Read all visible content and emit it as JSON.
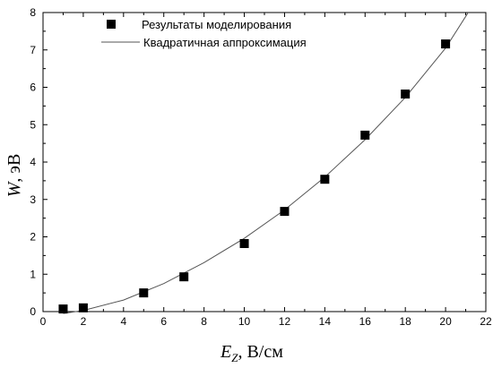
{
  "chart_data": {
    "type": "scatter",
    "xlabel": {
      "symbol": "E",
      "subscript": "Z",
      "units": ", В/см"
    },
    "ylabel": {
      "symbol": "W",
      "units": ",  эВ"
    },
    "xlim": [
      0,
      22
    ],
    "ylim": [
      0,
      8
    ],
    "xticks": [
      0,
      2,
      4,
      6,
      8,
      10,
      12,
      14,
      16,
      18,
      20,
      22
    ],
    "yticks": [
      0,
      1,
      2,
      3,
      4,
      5,
      6,
      7,
      8
    ],
    "legend_position": "top-left",
    "series": [
      {
        "name": "Результаты моделирования",
        "kind": "markers",
        "marker": "square",
        "color": "#000000",
        "points": [
          {
            "x": 1,
            "y": 0.07
          },
          {
            "x": 2,
            "y": 0.1
          },
          {
            "x": 5,
            "y": 0.5
          },
          {
            "x": 7,
            "y": 0.93
          },
          {
            "x": 10,
            "y": 1.82
          },
          {
            "x": 12,
            "y": 2.68
          },
          {
            "x": 14,
            "y": 3.54
          },
          {
            "x": 16,
            "y": 4.72
          },
          {
            "x": 18,
            "y": 5.82
          },
          {
            "x": 20,
            "y": 7.16
          }
        ]
      },
      {
        "name": "Квадратичная аппроксимация",
        "kind": "line",
        "color": "#555555",
        "points": [
          {
            "x": 1,
            "y": -0.05
          },
          {
            "x": 2,
            "y": 0.03
          },
          {
            "x": 4,
            "y": 0.31
          },
          {
            "x": 6,
            "y": 0.75
          },
          {
            "x": 8,
            "y": 1.31
          },
          {
            "x": 10,
            "y": 1.96
          },
          {
            "x": 12,
            "y": 2.72
          },
          {
            "x": 14,
            "y": 3.6
          },
          {
            "x": 16,
            "y": 4.6
          },
          {
            "x": 18,
            "y": 5.73
          },
          {
            "x": 20,
            "y": 7.05
          },
          {
            "x": 21.1,
            "y": 7.98
          }
        ]
      }
    ]
  }
}
